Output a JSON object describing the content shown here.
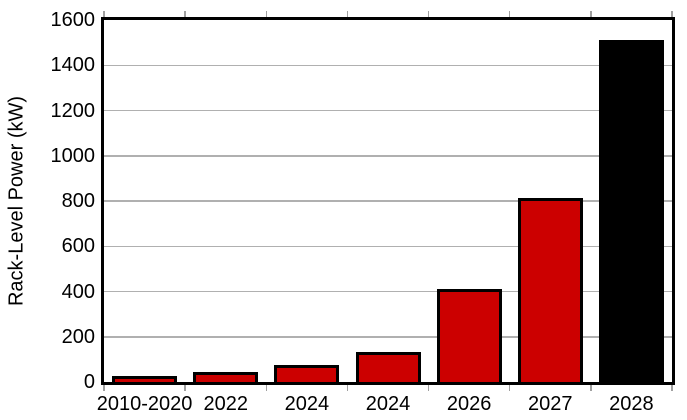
{
  "figure": {
    "background": "#ffffff"
  },
  "chart_data": {
    "type": "bar",
    "title": "",
    "categories": [
      "2010-2020",
      "2022",
      "2024",
      "2024",
      "2026",
      "2027",
      "2028"
    ],
    "values": [
      15,
      30,
      60,
      120,
      400,
      800,
      1500
    ],
    "bar_colors": [
      "#CC0000",
      "#CC0000",
      "#CC0000",
      "#CC0000",
      "#CC0000",
      "#CC0000",
      "#000000"
    ],
    "bar_edge_color": "#000000",
    "xlabel": "",
    "ylabel": "Rack-Level Power (kW)",
    "ylim": [
      0,
      1600
    ],
    "ytick_step": 200,
    "ytick_labels": [
      "0",
      "200",
      "400",
      "600",
      "800",
      "1000",
      "1200",
      "1400",
      "1600"
    ],
    "grid": "horizontal-only",
    "grid_color": "#b0b0b0",
    "tick_color": "#a0a0a0",
    "tick_position": "between-categories",
    "legend": "none"
  }
}
